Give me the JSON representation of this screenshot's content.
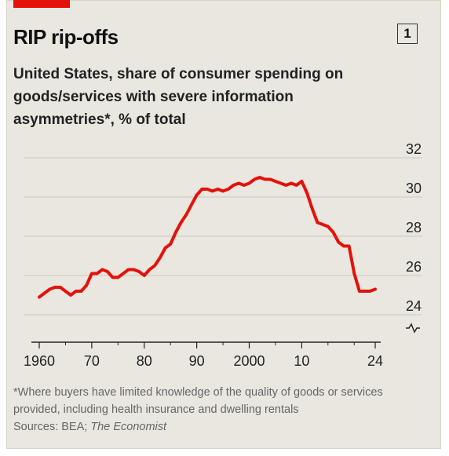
{
  "header": {
    "title": "RIP rip-offs",
    "chart_number": "1",
    "subtitle": "United States, share of consumer spending on goods/services with severe information asymmetries*, % of total"
  },
  "footnote": {
    "note": "*Where buyers have limited knowledge of the quality of goods or services provided, including health insurance and dwelling rentals",
    "sources_prefix": "Sources: BEA; ",
    "sources_italic": "The Economist"
  },
  "colors": {
    "line": "#e3120b",
    "background": "#e9e7df",
    "grid": "#ccc9be",
    "axis": "#222222",
    "accent_bar": "#e3120b"
  },
  "chart_data": {
    "type": "line",
    "title": "RIP rip-offs",
    "xlabel": "",
    "ylabel": "",
    "xlim": [
      1960,
      2024
    ],
    "ylim": [
      24,
      32
    ],
    "y_axis_break": true,
    "y_axis_side": "right",
    "grid": true,
    "x_ticks": [
      1960,
      1970,
      1980,
      1990,
      2000,
      2010,
      2024
    ],
    "x_tick_labels": [
      "1960",
      "70",
      "80",
      "90",
      "2000",
      "10",
      "24"
    ],
    "y_ticks": [
      24,
      26,
      28,
      30,
      32
    ],
    "y_tick_labels": [
      "24",
      "26",
      "28",
      "30",
      "32"
    ],
    "series": [
      {
        "x": [
          1960,
          1961,
          1962,
          1963,
          1964,
          1965,
          1966,
          1967,
          1968,
          1969,
          1970,
          1971,
          1972,
          1973,
          1974,
          1975,
          1976,
          1977,
          1978,
          1979,
          1980,
          1981,
          1982,
          1983,
          1984,
          1985,
          1986,
          1987,
          1988,
          1989,
          1990,
          1991,
          1992,
          1993,
          1994,
          1995,
          1996,
          1997,
          1998,
          1999,
          2000,
          2001,
          2002,
          2003,
          2004,
          2005,
          2006,
          2007,
          2008,
          2009,
          2010,
          2011,
          2012,
          2013,
          2014,
          2015,
          2016,
          2017,
          2018,
          2019,
          2020,
          2021,
          2022,
          2023,
          2024
        ],
        "values": [
          24.9,
          25.1,
          25.3,
          25.4,
          25.4,
          25.2,
          25.0,
          25.2,
          25.2,
          25.5,
          26.1,
          26.1,
          26.3,
          26.2,
          25.9,
          25.9,
          26.1,
          26.3,
          26.3,
          26.2,
          26.0,
          26.3,
          26.5,
          26.9,
          27.4,
          27.6,
          28.2,
          28.7,
          29.1,
          29.6,
          30.1,
          30.4,
          30.4,
          30.3,
          30.4,
          30.3,
          30.4,
          30.6,
          30.7,
          30.6,
          30.7,
          30.9,
          31.0,
          30.9,
          30.9,
          30.8,
          30.7,
          30.6,
          30.7,
          30.6,
          30.8,
          30.2,
          29.4,
          28.7,
          28.6,
          28.5,
          28.2,
          27.7,
          27.5,
          27.5,
          26.1,
          25.2,
          25.2,
          25.2,
          25.3
        ]
      }
    ]
  }
}
